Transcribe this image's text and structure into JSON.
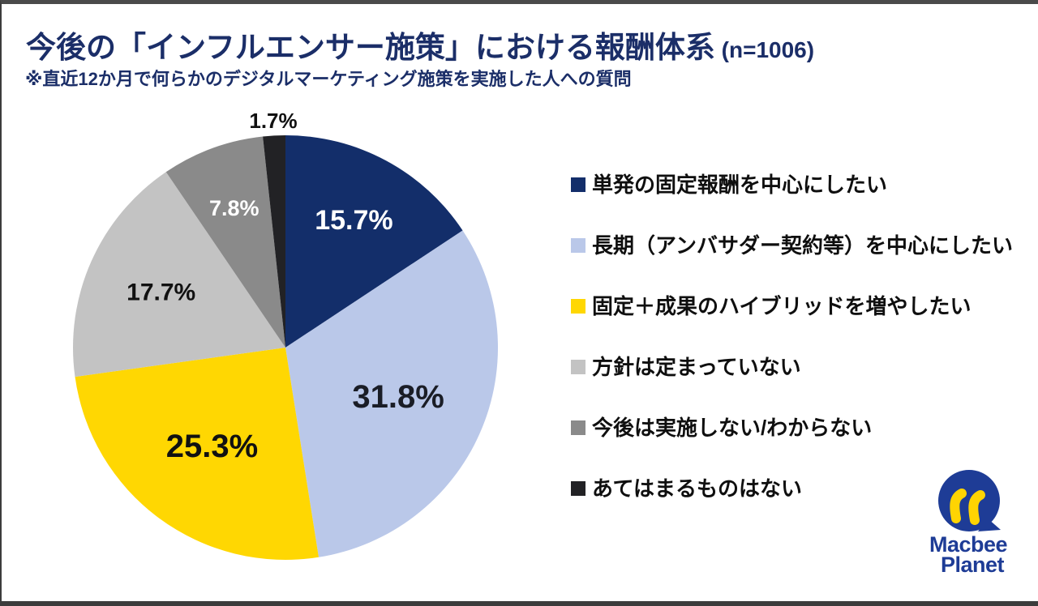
{
  "header": {
    "title": "今後の「インフルエンサー施策」における報酬体系",
    "title_suffix": " (n=1006)",
    "subtitle": "※直近12か月で何らかのデジタルマーケティング施策を実施した人への質問",
    "title_color": "#1b2e68"
  },
  "chart_data": {
    "type": "pie",
    "title": "今後の「インフルエンサー施策」における報酬体系 (n=1006)",
    "sample_size_label": "n=1006",
    "start_angle_deg": 0,
    "direction": "clockwise",
    "legend_position": "right",
    "slices": [
      {
        "label": "単発の固定報酬を中心にしたい",
        "value": 15.7,
        "pct_label": "15.7%",
        "color": "#132e6a",
        "label_color": "#ffffff",
        "label_r": 0.68,
        "label_font": 34
      },
      {
        "label": "長期（アンバサダー契約等）を中心にしたい",
        "value": 31.8,
        "pct_label": "31.8%",
        "color": "#bac8e9",
        "label_color": "#1a1d26",
        "label_r": 0.58,
        "label_font": 40
      },
      {
        "label": "固定＋成果のハイブリッドを増やしたい",
        "value": 25.3,
        "pct_label": "25.3%",
        "color": "#ffd702",
        "label_color": "#111111",
        "label_r": 0.58,
        "label_font": 40
      },
      {
        "label": "方針は定まっていない",
        "value": 17.7,
        "pct_label": "17.7%",
        "color": "#c3c3c3",
        "label_color": "#111111",
        "label_r": 0.64,
        "label_font": 30
      },
      {
        "label": "今後は実施しない/わからない",
        "value": 7.8,
        "pct_label": "7.8%",
        "color": "#8a8a8a",
        "label_color": "#ffffff",
        "label_r": 0.7,
        "label_font": 27
      },
      {
        "label": "あてはまるものはない",
        "value": 1.7,
        "pct_label": "1.7%",
        "color": "#222225",
        "label_color": "#111111",
        "label_r": 1.07,
        "label_font": 26
      }
    ]
  },
  "logo": {
    "line1": "Macbee",
    "line2": "Planet",
    "blue": "#1e3c96",
    "yellow": "#ffd402"
  }
}
